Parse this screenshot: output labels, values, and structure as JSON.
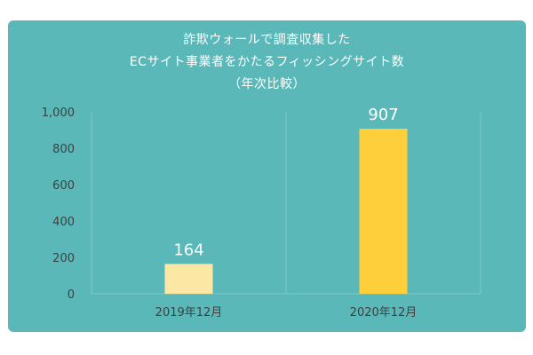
{
  "chart_data": {
    "type": "bar",
    "title_lines": [
      "詐欺ウォールで調査収集した",
      "ECサイト事業者をかたるフィッシングサイト数",
      "（年次比較）"
    ],
    "categories": [
      "2019年12月",
      "2020年12月"
    ],
    "values": [
      164,
      907
    ],
    "value_labels": [
      "164",
      "907"
    ],
    "bar_colors": [
      "#fde7a4",
      "#ffce3b"
    ],
    "ylim": [
      0,
      1000
    ],
    "yticks": [
      0,
      200,
      400,
      600,
      800,
      1000
    ],
    "ytick_labels": [
      "0",
      "200",
      "400",
      "600",
      "800",
      "1,000"
    ],
    "grid": "vertical dividers",
    "legend": "none"
  },
  "colors": {
    "card_background": "#5bb8b8",
    "text_light": "#ffffff",
    "text_dark": "#3f3f3f",
    "grid": "#7ec9c9"
  }
}
